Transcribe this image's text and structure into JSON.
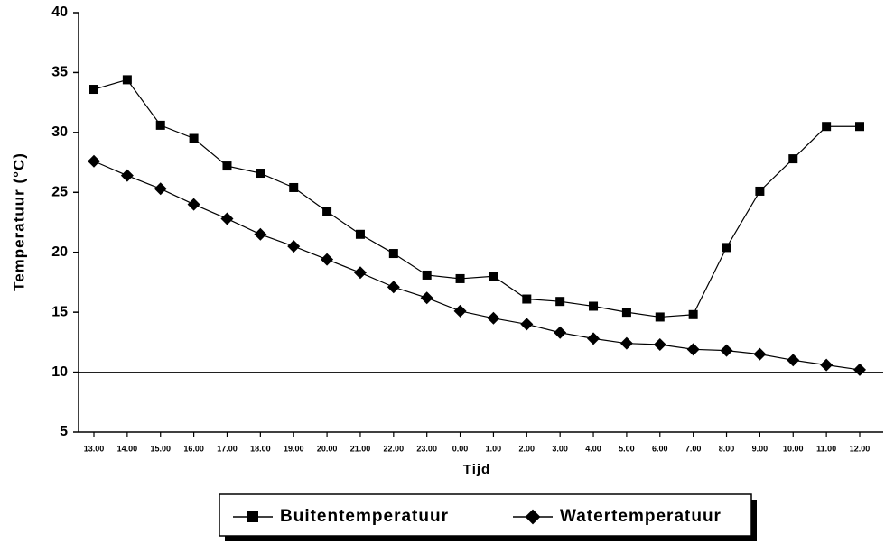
{
  "chart_data": {
    "type": "line",
    "x_label": "Tijd",
    "y_label": "Temperatuur (°C)",
    "categories": [
      "13.00",
      "14.00",
      "15.00",
      "16.00",
      "17.00",
      "18.00",
      "19.00",
      "20.00",
      "21.00",
      "22.00",
      "23.00",
      "0.00",
      "1.00",
      "2.00",
      "3.00",
      "4.00",
      "5.00",
      "6.00",
      "7.00",
      "8.00",
      "9.00",
      "10.00",
      "11.00",
      "12.00"
    ],
    "series": [
      {
        "name": "Buitentemperatuur",
        "color": "#000000",
        "marker": "square",
        "values": [
          33.6,
          34.4,
          30.6,
          29.5,
          27.2,
          26.6,
          25.4,
          23.4,
          21.5,
          19.9,
          18.1,
          17.8,
          18.0,
          16.1,
          15.9,
          15.5,
          15.0,
          14.6,
          14.8,
          20.4,
          25.1,
          27.8,
          30.5,
          30.5
        ]
      },
      {
        "name": "Watertemperatuur",
        "color": "#000000",
        "marker": "diamond",
        "values": [
          27.6,
          26.4,
          25.3,
          24.0,
          22.8,
          21.5,
          20.5,
          19.4,
          18.3,
          17.1,
          16.2,
          15.1,
          14.5,
          14.0,
          13.3,
          12.8,
          12.4,
          12.3,
          11.9,
          11.8,
          11.5,
          11.0,
          10.6,
          10.2
        ]
      }
    ],
    "reference_line": 10,
    "ylim": [
      5,
      40
    ],
    "yticks": [
      5,
      10,
      15,
      20,
      25,
      30,
      35,
      40
    ],
    "grid": false,
    "legend": "bottom"
  }
}
